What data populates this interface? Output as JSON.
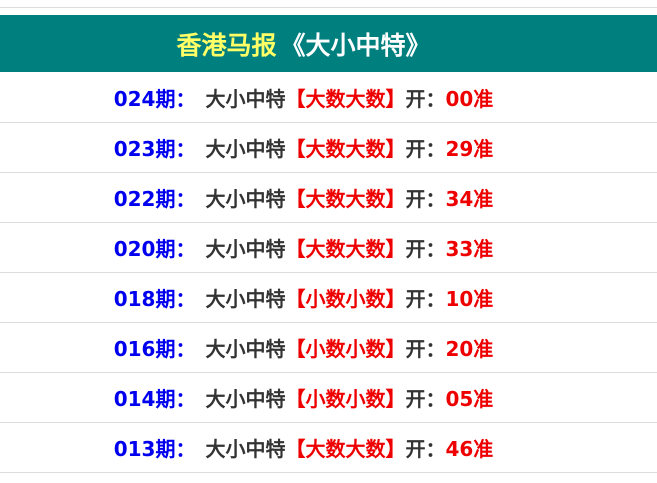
{
  "header": {
    "title_yellow": "香港马报",
    "title_white": "《大小中特》",
    "bg_color": "#007f7f",
    "title_color": "#ffff66"
  },
  "rows": [
    {
      "period": "024期：",
      "label": "大小中特",
      "pick": "【大数大数】",
      "open": "开：",
      "result": "00准"
    },
    {
      "period": "023期：",
      "label": "大小中特",
      "pick": "【大数大数】",
      "open": "开：",
      "result": "29准"
    },
    {
      "period": "022期：",
      "label": "大小中特",
      "pick": "【大数大数】",
      "open": "开：",
      "result": "34准"
    },
    {
      "period": "020期：",
      "label": "大小中特",
      "pick": "【大数大数】",
      "open": "开：",
      "result": "33准"
    },
    {
      "period": "018期：",
      "label": "大小中特",
      "pick": "【小数小数】",
      "open": "开：",
      "result": "10准"
    },
    {
      "period": "016期：",
      "label": "大小中特",
      "pick": "【小数小数】",
      "open": "开：",
      "result": "20准"
    },
    {
      "period": "014期：",
      "label": "大小中特",
      "pick": "【小数小数】",
      "open": "开：",
      "result": "05准"
    },
    {
      "period": "013期：",
      "label": "大小中特",
      "pick": "【大数大数】",
      "open": "开：",
      "result": "46准"
    }
  ]
}
